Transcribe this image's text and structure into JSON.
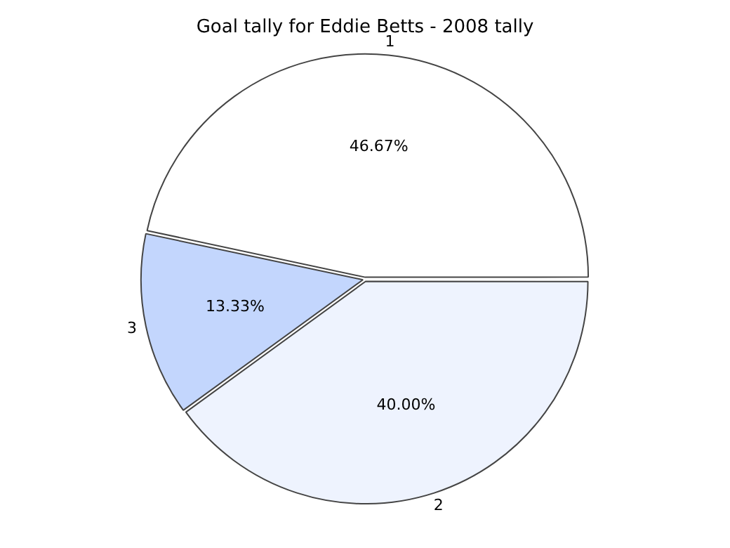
{
  "chart_data": {
    "type": "pie",
    "title": "Goal tally for Eddie Betts - 2008 tally",
    "categories": [
      "1",
      "2",
      "3"
    ],
    "values": [
      46.67,
      40.0,
      13.33
    ],
    "value_labels": [
      "46.67%",
      "40.00%",
      "13.33%"
    ],
    "colors": [
      "#ffffff",
      "#eef3fe",
      "#c3d6fd"
    ],
    "legend": false
  }
}
